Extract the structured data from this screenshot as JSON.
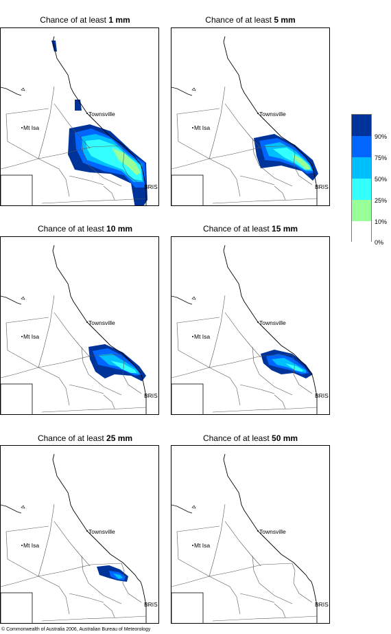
{
  "title_prefix": "Chance of at least",
  "panels": [
    {
      "amount": "1 mm"
    },
    {
      "amount": "5 mm"
    },
    {
      "amount": "10 mm"
    },
    {
      "amount": "15 mm"
    },
    {
      "amount": "25 mm"
    },
    {
      "amount": "50 mm"
    }
  ],
  "map_labels": {
    "townsville": "Townsville",
    "mt_isa": "Mt Isa",
    "bris": "BRIS"
  },
  "legend": {
    "labels": [
      "90%",
      "75%",
      "50%",
      "25%",
      "10%",
      "0%"
    ],
    "colors": [
      "#003399",
      "#0066ff",
      "#00bfff",
      "#33ffff",
      "#99ff99",
      "#ffffff"
    ]
  },
  "copyright": "© Commonwealth of Australia 2006, Australian Bureau of Meteorology"
}
